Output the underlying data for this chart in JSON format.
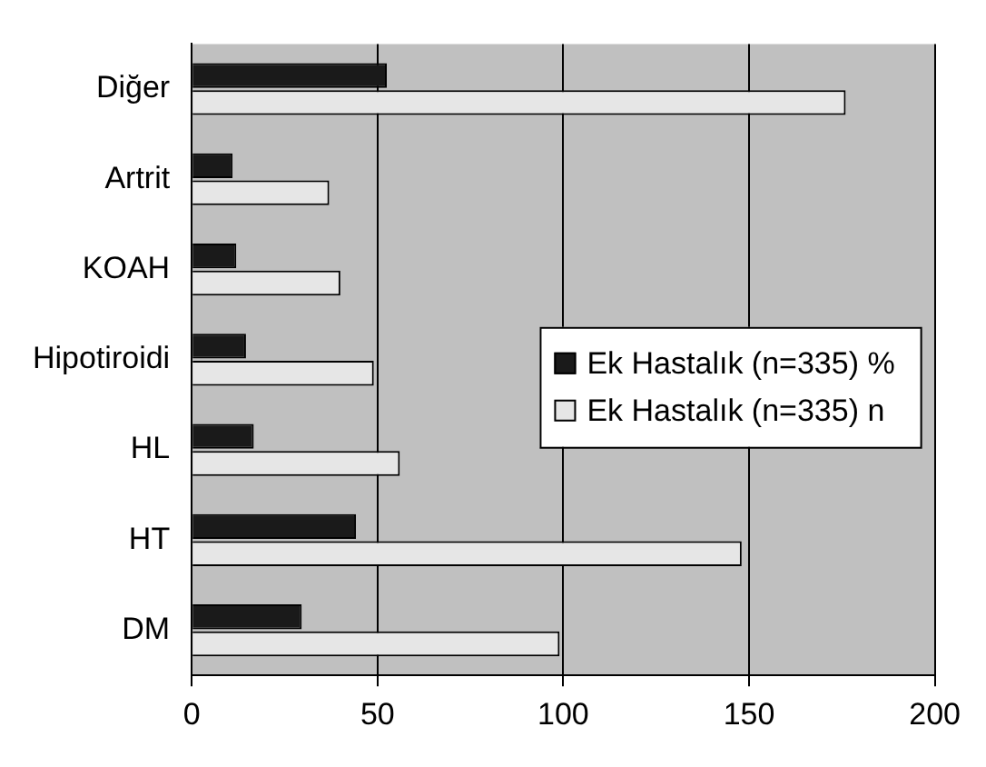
{
  "chart_data": {
    "type": "bar",
    "orientation": "horizontal",
    "categories": [
      "Diğer",
      "Artrit",
      "KOAH",
      "Hipotiroidi",
      "HL",
      "HT",
      "DM"
    ],
    "series": [
      {
        "name": "Ek Hastalık (n=335) %",
        "color": "#1a1a1a",
        "values": [
          52.5,
          11,
          12,
          14.6,
          16.7,
          44.2,
          29.6
        ]
      },
      {
        "name": "Ek Hastalık (n=335) n",
        "color": "#e6e6e6",
        "values": [
          176,
          37,
          40,
          49,
          56,
          148,
          99
        ]
      }
    ],
    "xlim": [
      0,
      200
    ],
    "xticks": [
      0,
      50,
      100,
      150,
      200
    ],
    "grid": "x",
    "legend": "right"
  }
}
